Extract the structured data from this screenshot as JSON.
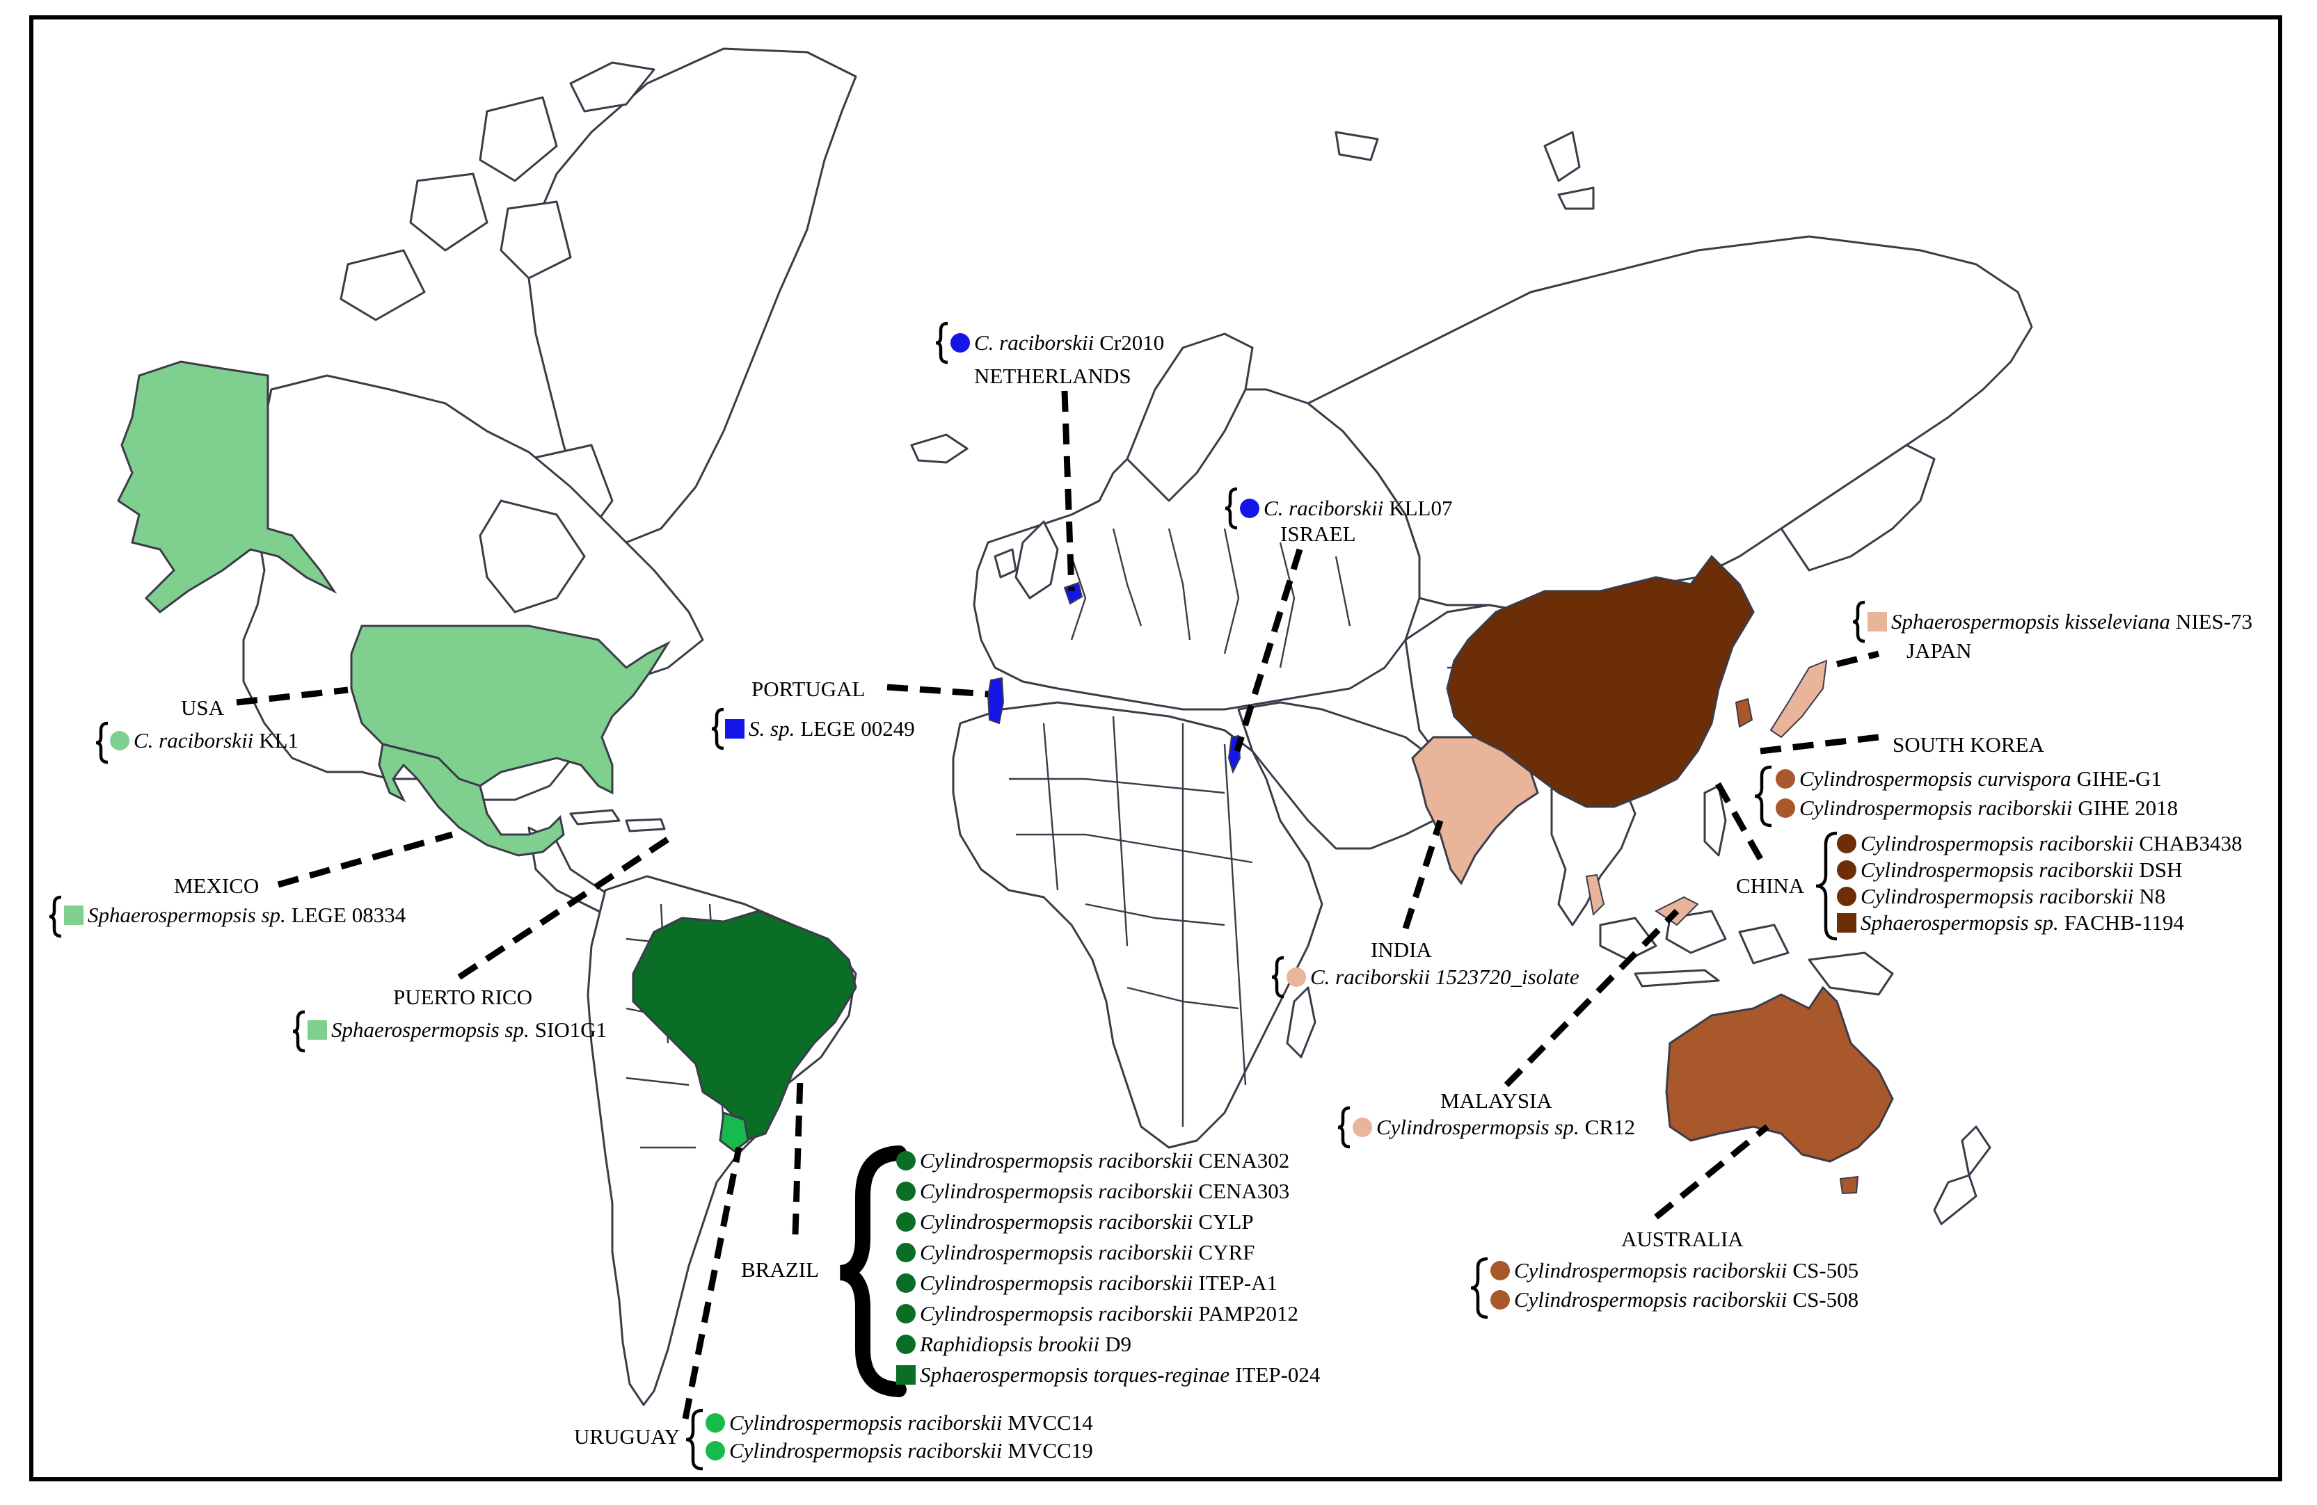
{
  "colors": {
    "green_light": "#7fcf8e",
    "green_dark": "#0b6e26",
    "green_bright": "#17bb4c",
    "blue": "#1515e8",
    "peach": "#e8b49a",
    "brown_dark": "#6b2e06",
    "brown_mid": "#a9582c"
  },
  "countries": {
    "usa": "USA",
    "mexico": "MEXICO",
    "puerto_rico": "PUERTO RICO",
    "brazil": "BRAZIL",
    "uruguay": "URUGUAY",
    "portugal": "PORTUGAL",
    "netherlands": "NETHERLANDS",
    "israel": "ISRAEL",
    "india": "INDIA",
    "malaysia": "MALAYSIA",
    "australia": "AUSTRALIA",
    "china": "CHINA",
    "south_korea": "SOUTH KOREA",
    "japan": "JAPAN"
  },
  "strains": {
    "usa": [
      {
        "species": "C. raciborskii",
        "strain": "KL1",
        "marker": "circle",
        "color": "#7fcf8e"
      }
    ],
    "mexico": [
      {
        "species": "Sphaerospermopsis sp.",
        "strain": "LEGE 08334",
        "marker": "square",
        "color": "#7fcf8e"
      }
    ],
    "puerto_rico": [
      {
        "species": "Sphaerospermopsis sp.",
        "strain": "SIO1G1",
        "marker": "square",
        "color": "#7fcf8e"
      }
    ],
    "brazil": [
      {
        "species": "Cylindrospermopsis raciborskii",
        "strain": "CENA302",
        "marker": "circle",
        "color": "#0b6e26"
      },
      {
        "species": "Cylindrospermopsis raciborskii",
        "strain": "CENA303",
        "marker": "circle",
        "color": "#0b6e26"
      },
      {
        "species": "Cylindrospermopsis raciborskii",
        "strain": "CYLP",
        "marker": "circle",
        "color": "#0b6e26"
      },
      {
        "species": "Cylindrospermopsis raciborskii",
        "strain": "CYRF",
        "marker": "circle",
        "color": "#0b6e26"
      },
      {
        "species": "Cylindrospermopsis raciborskii",
        "strain": "ITEP-A1",
        "marker": "circle",
        "color": "#0b6e26"
      },
      {
        "species": "Cylindrospermopsis raciborskii",
        "strain": "PAMP2012",
        "marker": "circle",
        "color": "#0b6e26"
      },
      {
        "species": "Raphidiopsis brookii",
        "strain": "D9",
        "marker": "circle",
        "color": "#0b6e26"
      },
      {
        "species": "Sphaerospermopsis torques-reginae",
        "strain": "ITEP-024",
        "marker": "square",
        "color": "#0b6e26"
      }
    ],
    "uruguay": [
      {
        "species": "Cylindrospermopsis raciborskii",
        "strain": "MVCC14",
        "marker": "circle",
        "color": "#17bb4c"
      },
      {
        "species": "Cylindrospermopsis raciborskii",
        "strain": "MVCC19",
        "marker": "circle",
        "color": "#17bb4c"
      }
    ],
    "portugal": [
      {
        "species": "S. sp.",
        "strain": "LEGE 00249",
        "marker": "square",
        "color": "#1515e8"
      }
    ],
    "netherlands": [
      {
        "species": "C. raciborskii",
        "strain": "Cr2010",
        "marker": "circle",
        "color": "#1515e8"
      }
    ],
    "israel": [
      {
        "species": "C. raciborskii",
        "strain": "KLL07",
        "marker": "circle",
        "color": "#1515e8"
      }
    ],
    "india": [
      {
        "species": "C. raciborskii 1523720_isolate",
        "strain": "",
        "marker": "circle",
        "color": "#e8b49a"
      }
    ],
    "malaysia": [
      {
        "species": "Cylindrospermopsis sp.",
        "strain": "CR12",
        "marker": "circle",
        "color": "#e8b49a"
      }
    ],
    "australia": [
      {
        "species": "Cylindrospermopsis raciborskii",
        "strain": "CS-505",
        "marker": "circle",
        "color": "#a9582c"
      },
      {
        "species": "Cylindrospermopsis raciborskii",
        "strain": "CS-508",
        "marker": "circle",
        "color": "#a9582c"
      }
    ],
    "china": [
      {
        "species": "Cylindrospermopsis raciborskii",
        "strain": "CHAB3438",
        "marker": "circle",
        "color": "#6b2e06"
      },
      {
        "species": "Cylindrospermopsis raciborskii",
        "strain": "DSH",
        "marker": "circle",
        "color": "#6b2e06"
      },
      {
        "species": "Cylindrospermopsis raciborskii",
        "strain": "N8",
        "marker": "circle",
        "color": "#6b2e06"
      },
      {
        "species": "Sphaerospermopsis sp.",
        "strain": "FACHB-1194",
        "marker": "square",
        "color": "#6b2e06"
      }
    ],
    "south_korea": [
      {
        "species": "Cylindrospermopsis curvispora",
        "strain": "GIHE-G1",
        "marker": "circle",
        "color": "#a9582c"
      },
      {
        "species": "Cylindrospermopsis raciborskii",
        "strain": "GIHE 2018",
        "marker": "circle",
        "color": "#a9582c"
      }
    ],
    "japan": [
      {
        "species": "Sphaerospermopsis kisseleviana",
        "strain": "NIES-73",
        "marker": "square",
        "color": "#e8b49a"
      }
    ]
  }
}
